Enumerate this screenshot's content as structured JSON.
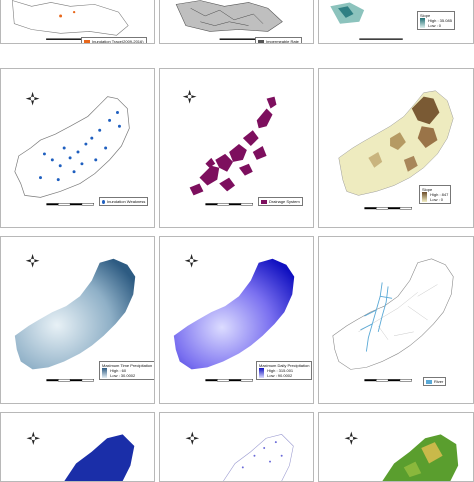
{
  "panels": [
    {
      "id": "r0c0",
      "legend": [
        "Inundation Trace(2009-2016)"
      ],
      "legend_color": "#e8671b"
    },
    {
      "id": "r0c1",
      "legend": [
        "Impermeable Rate"
      ],
      "legend_color": "#555555"
    },
    {
      "id": "r0c2",
      "legend": [
        "Slope",
        "High : 35.085",
        "Low : 0"
      ],
      "gradient": [
        "#1f6e73",
        "#dff0ee"
      ]
    },
    {
      "id": "r1c0",
      "legend": [
        "Inundation Weakness"
      ],
      "legend_color": "#1f5fbf"
    },
    {
      "id": "r1c1",
      "legend": [
        "Drainage System"
      ],
      "legend_color": "#7d0f5e"
    },
    {
      "id": "r1c2",
      "legend": [
        "Slope",
        "High : 847",
        "Low : 0"
      ],
      "gradient": [
        "#6b4c2a",
        "#f3efc5"
      ]
    },
    {
      "id": "r2c0",
      "legend": [
        "Maximum Time Precipitation",
        "High : 60",
        "Low : 30.0002"
      ],
      "gradient": [
        "#2d5b82",
        "#e7f0f6"
      ]
    },
    {
      "id": "r2c1",
      "legend": [
        "Maximum Daily Precipitation",
        "High : 315.001",
        "Low : 90.0002"
      ],
      "gradient": [
        "#1010c0",
        "#dcdcff"
      ]
    },
    {
      "id": "r2c2",
      "legend": [
        "River"
      ],
      "legend_color": "#5aa9d6"
    },
    {
      "id": "r3c0",
      "legend": []
    },
    {
      "id": "r3c1",
      "legend": []
    },
    {
      "id": "r3c2",
      "legend": []
    }
  ],
  "scale": {
    "labels": [
      "0",
      "2.5",
      "5",
      "10",
      "15",
      "20"
    ],
    "unit": "km"
  },
  "colors": {
    "outline": "#7a7a7a",
    "orange": "#e8671b",
    "blue_dots": "#1f5fbf",
    "purple": "#7d0f5e",
    "river": "#5aa9d6",
    "green": "#4e9a2a"
  },
  "icons": {
    "north_arrow": "compass-star-icon"
  }
}
